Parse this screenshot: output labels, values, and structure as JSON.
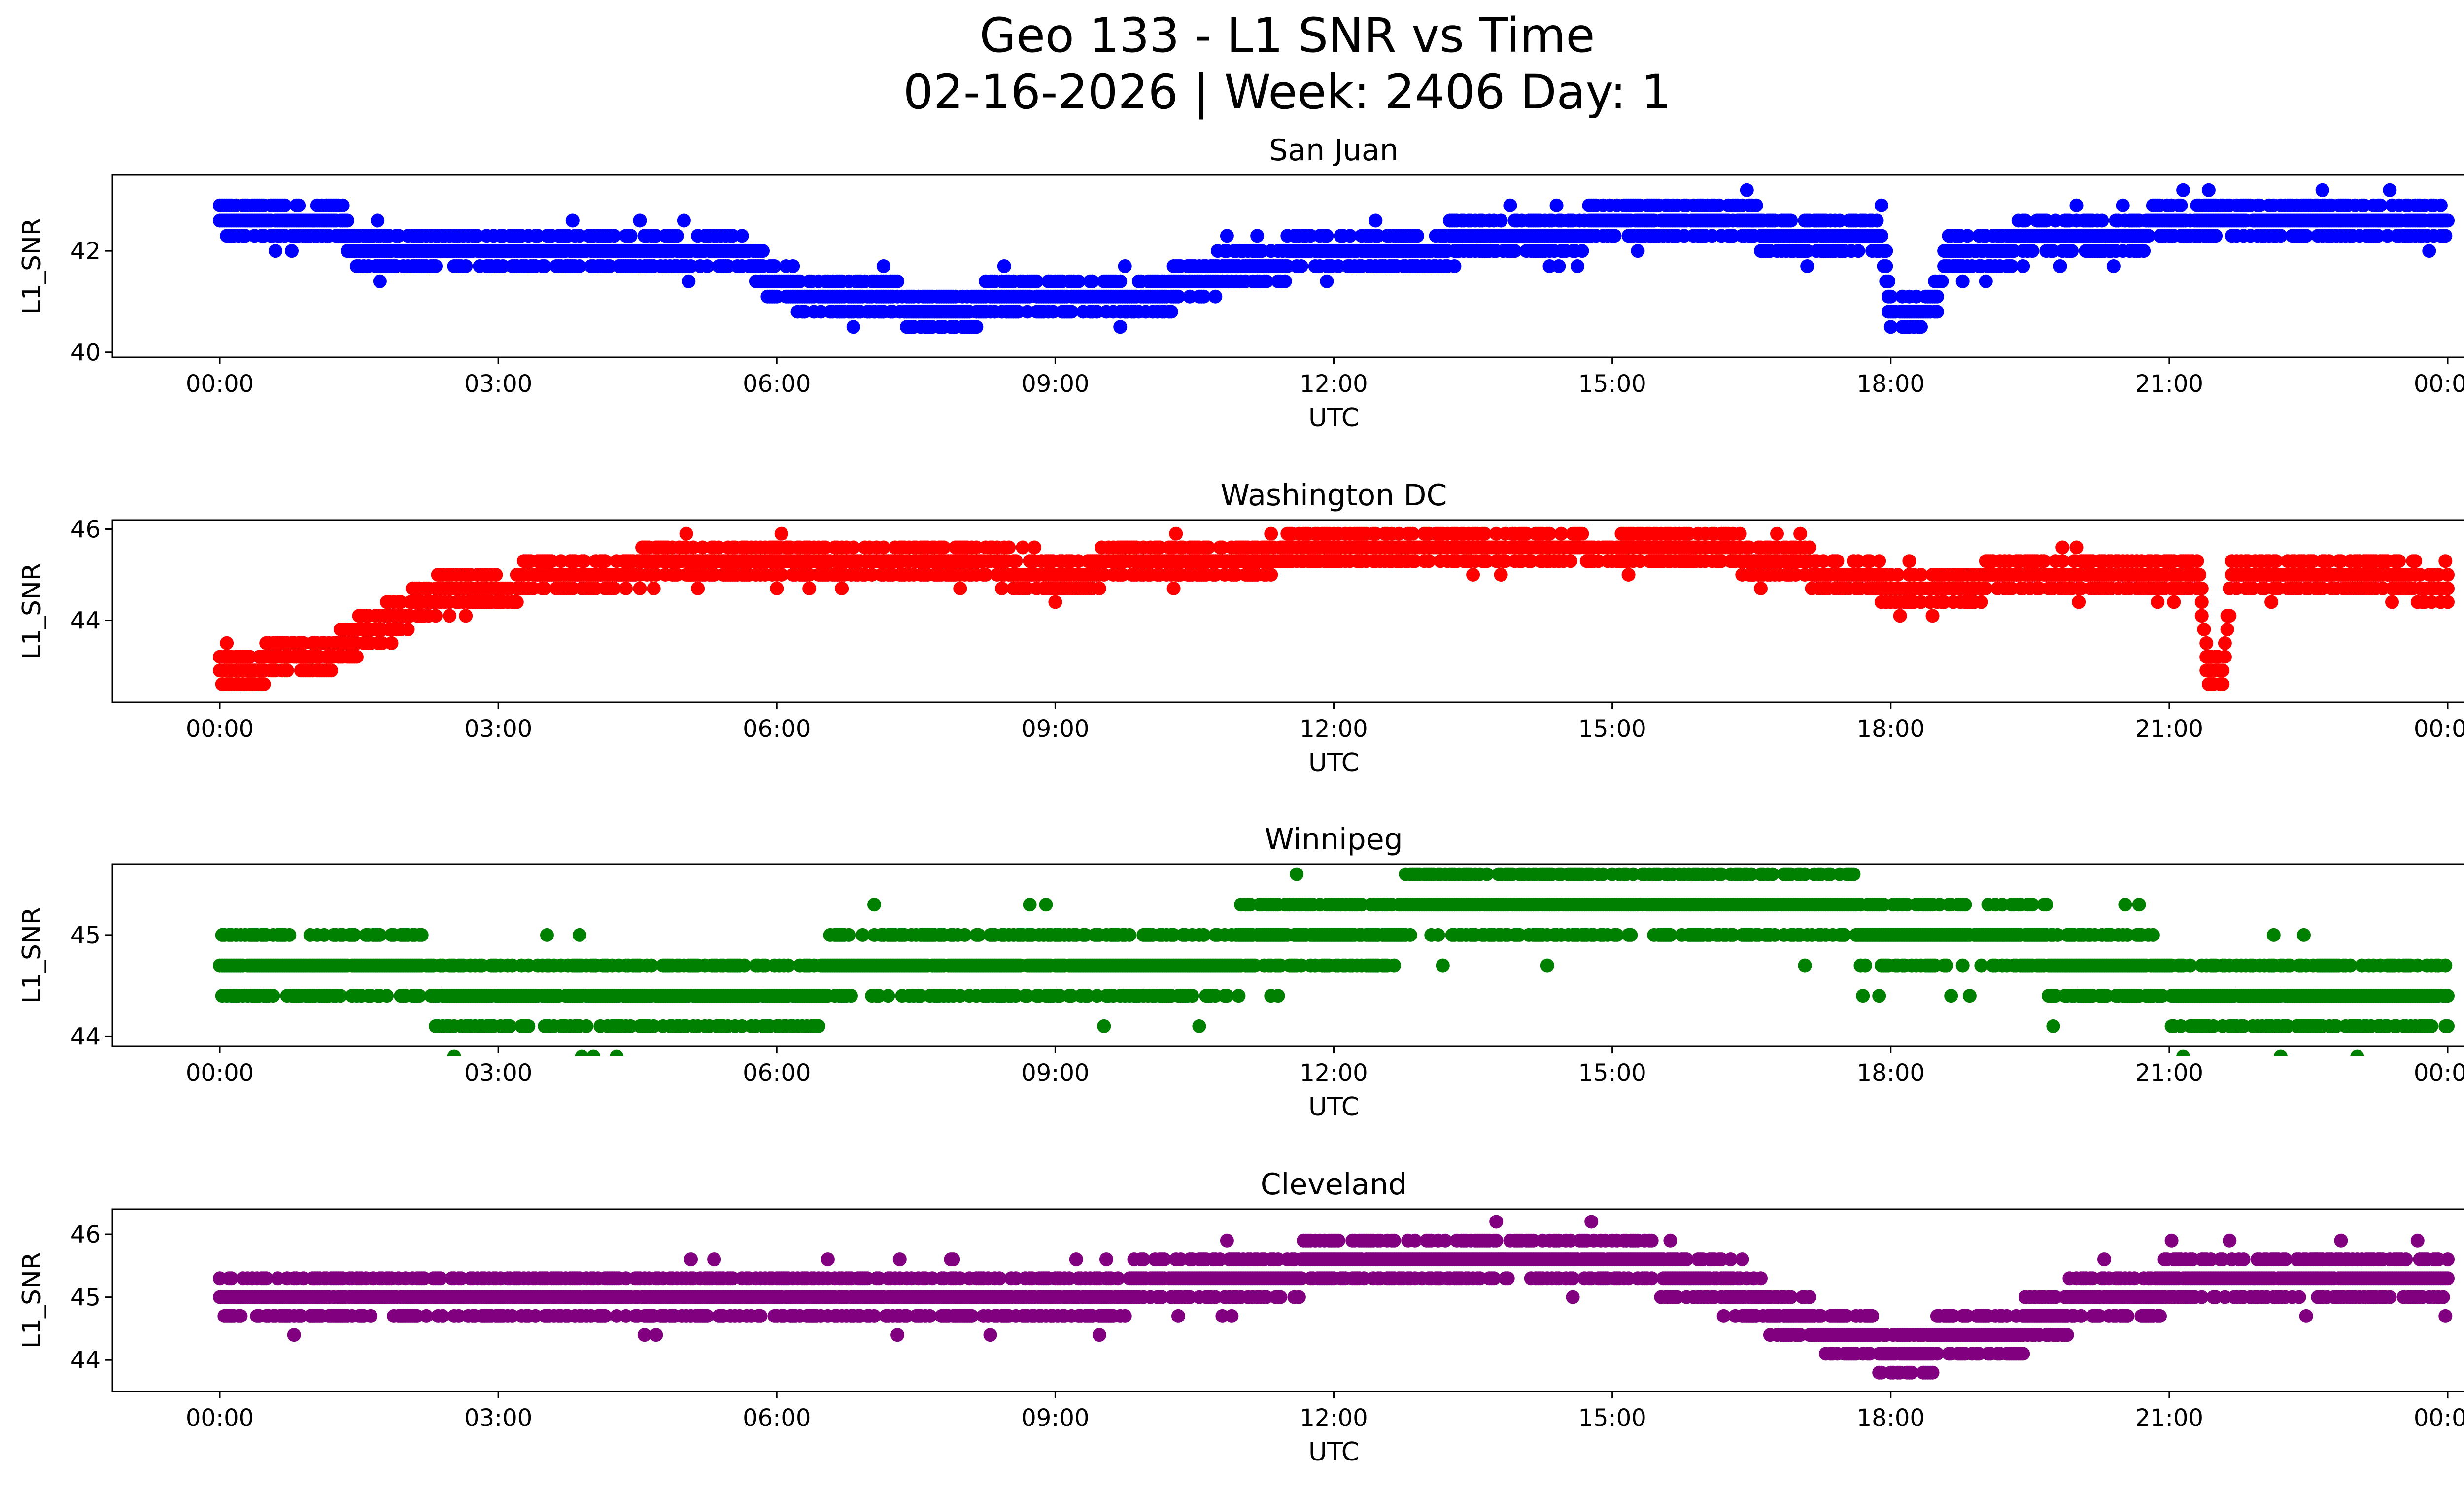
{
  "figure": {
    "title_line1": "Geo 133 - L1 SNR vs Time",
    "title_line2": "02-16-2026 | Week: 2406 Day: 1"
  },
  "chart_data": [
    {
      "type": "scatter",
      "title": "San Juan",
      "xlabel": "UTC",
      "ylabel": "L1_SNR",
      "color": "#0000ff",
      "xlim": [
        "00:00",
        "24:00"
      ],
      "ylim": [
        39.9,
        43.5
      ],
      "x_ticks": [
        "00:00",
        "03:00",
        "06:00",
        "09:00",
        "12:00",
        "15:00",
        "18:00",
        "21:00",
        "00:00"
      ],
      "y_ticks": [
        40,
        42
      ],
      "snr_step": 0.3,
      "profile": [
        [
          "00:00",
          42.6
        ],
        [
          "01:20",
          42.6
        ],
        [
          "01:25",
          41.9
        ],
        [
          "05:40",
          41.9
        ],
        [
          "06:00",
          41.3
        ],
        [
          "07:30",
          40.9
        ],
        [
          "09:00",
          41.0
        ],
        [
          "10:30",
          41.3
        ],
        [
          "11:00",
          41.8
        ],
        [
          "12:00",
          41.9
        ],
        [
          "13:00",
          42.1
        ],
        [
          "14:00",
          42.3
        ],
        [
          "15:00",
          42.5
        ],
        [
          "16:30",
          42.5
        ],
        [
          "17:00",
          42.2
        ],
        [
          "17:55",
          42.2
        ],
        [
          "18:00",
          40.7
        ],
        [
          "18:30",
          41.0
        ],
        [
          "18:35",
          41.9
        ],
        [
          "19:30",
          42.2
        ],
        [
          "21:00",
          42.5
        ],
        [
          "24:00",
          42.6
        ]
      ]
    },
    {
      "type": "scatter",
      "title": "Washington DC",
      "xlabel": "UTC",
      "ylabel": "L1_SNR",
      "color": "#ff0000",
      "xlim": [
        "00:00",
        "24:00"
      ],
      "ylim": [
        42.2,
        46.2
      ],
      "x_ticks": [
        "00:00",
        "03:00",
        "06:00",
        "09:00",
        "12:00",
        "15:00",
        "18:00",
        "21:00",
        "00:00"
      ],
      "y_ticks": [
        44,
        46
      ],
      "snr_step": 0.3,
      "profile": [
        [
          "00:00",
          43.0
        ],
        [
          "01:00",
          43.1
        ],
        [
          "02:00",
          44.2
        ],
        [
          "02:30",
          44.7
        ],
        [
          "04:00",
          45.0
        ],
        [
          "05:00",
          45.3
        ],
        [
          "07:00",
          45.3
        ],
        [
          "09:00",
          45.1
        ],
        [
          "11:00",
          45.3
        ],
        [
          "12:00",
          45.6
        ],
        [
          "14:00",
          45.7
        ],
        [
          "16:00",
          45.6
        ],
        [
          "17:00",
          45.2
        ],
        [
          "18:00",
          44.8
        ],
        [
          "20:00",
          44.9
        ],
        [
          "21:20",
          44.9
        ],
        [
          "21:25",
          42.9
        ],
        [
          "21:35",
          42.9
        ],
        [
          "21:40",
          44.9
        ],
        [
          "22:00",
          45.1
        ],
        [
          "24:00",
          44.8
        ]
      ]
    },
    {
      "type": "scatter",
      "title": "Winnipeg",
      "xlabel": "UTC",
      "ylabel": "L1_SNR",
      "color": "#008000",
      "xlim": [
        "00:00",
        "24:00"
      ],
      "ylim": [
        43.9,
        45.7
      ],
      "x_ticks": [
        "00:00",
        "03:00",
        "06:00",
        "09:00",
        "12:00",
        "15:00",
        "18:00",
        "21:00",
        "00:00"
      ],
      "y_ticks": [
        44,
        45
      ],
      "snr_step": 0.3,
      "profile": [
        [
          "00:00",
          44.7
        ],
        [
          "03:00",
          44.5
        ],
        [
          "06:00",
          44.5
        ],
        [
          "08:00",
          44.7
        ],
        [
          "12:00",
          44.9
        ],
        [
          "12:50",
          45.2
        ],
        [
          "13:00",
          45.4
        ],
        [
          "16:00",
          45.4
        ],
        [
          "17:00",
          45.2
        ],
        [
          "19:30",
          45.0
        ],
        [
          "20:00",
          44.6
        ],
        [
          "22:00",
          44.5
        ],
        [
          "24:00",
          44.5
        ]
      ]
    },
    {
      "type": "scatter",
      "title": "Cleveland",
      "xlabel": "UTC",
      "ylabel": "L1_SNR",
      "color": "#800080",
      "xlim": [
        "00:00",
        "24:00"
      ],
      "ylim": [
        43.5,
        46.4
      ],
      "x_ticks": [
        "00:00",
        "03:00",
        "06:00",
        "09:00",
        "12:00",
        "15:00",
        "18:00",
        "21:00",
        "00:00"
      ],
      "y_ticks": [
        44,
        45,
        46
      ],
      "snr_step": 0.3,
      "profile": [
        [
          "00:00",
          44.9
        ],
        [
          "03:00",
          44.9
        ],
        [
          "06:00",
          44.9
        ],
        [
          "09:00",
          44.9
        ],
        [
          "10:00",
          45.2
        ],
        [
          "12:00",
          45.5
        ],
        [
          "14:00",
          45.6
        ],
        [
          "16:00",
          45.4
        ],
        [
          "17:00",
          44.6
        ],
        [
          "18:00",
          44.2
        ],
        [
          "19:00",
          44.3
        ],
        [
          "20:00",
          44.9
        ],
        [
          "21:30",
          45.3
        ],
        [
          "24:00",
          45.3
        ]
      ]
    }
  ]
}
